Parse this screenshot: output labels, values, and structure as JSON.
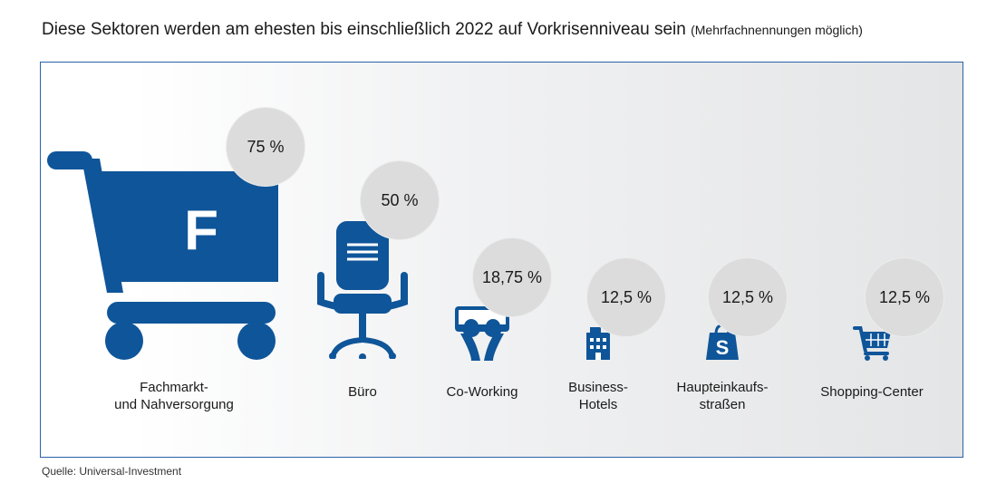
{
  "title": "Diese Sektoren werden am ehesten bis einschließlich 2022 auf Vorkrisenniveau sein",
  "subtitle": "(Mehrfachnennungen möglich)",
  "source": "Quelle: Universal-Investment",
  "colors": {
    "icon": "#0f5599",
    "bubble": "#dcdcdc",
    "frame": "#2a63a8"
  },
  "chart_data": {
    "type": "bar",
    "title": "Diese Sektoren werden am ehesten bis einschließlich 2022 auf Vorkrisenniveau sein",
    "categories": [
      "Fachmarkt- und Nahversorgung",
      "Büro",
      "Co-Working",
      "Business-Hotels",
      "Haupteinkaufsstraßen",
      "Shopping-Center"
    ],
    "values": [
      75,
      50,
      18.75,
      12.5,
      12.5,
      12.5
    ],
    "unit": "%",
    "value_labels": [
      "75 %",
      "50 %",
      "18,75 %",
      "12,5 %",
      "12,5 %",
      "12,5 %"
    ],
    "category_labels": [
      [
        "Fachmarkt-",
        "und Nahversorgung"
      ],
      [
        "Büro"
      ],
      [
        "Co-Working"
      ],
      [
        "Business-",
        "Hotels"
      ],
      [
        "Haupteinkaufs-",
        "straßen"
      ],
      [
        "Shopping-Center"
      ]
    ],
    "icons": [
      "shopping-cart-icon",
      "office-chair-icon",
      "coworking-icon",
      "hotel-building-icon",
      "shopping-bag-icon",
      "shopping-cart-icon"
    ],
    "cart_letter": "F"
  }
}
